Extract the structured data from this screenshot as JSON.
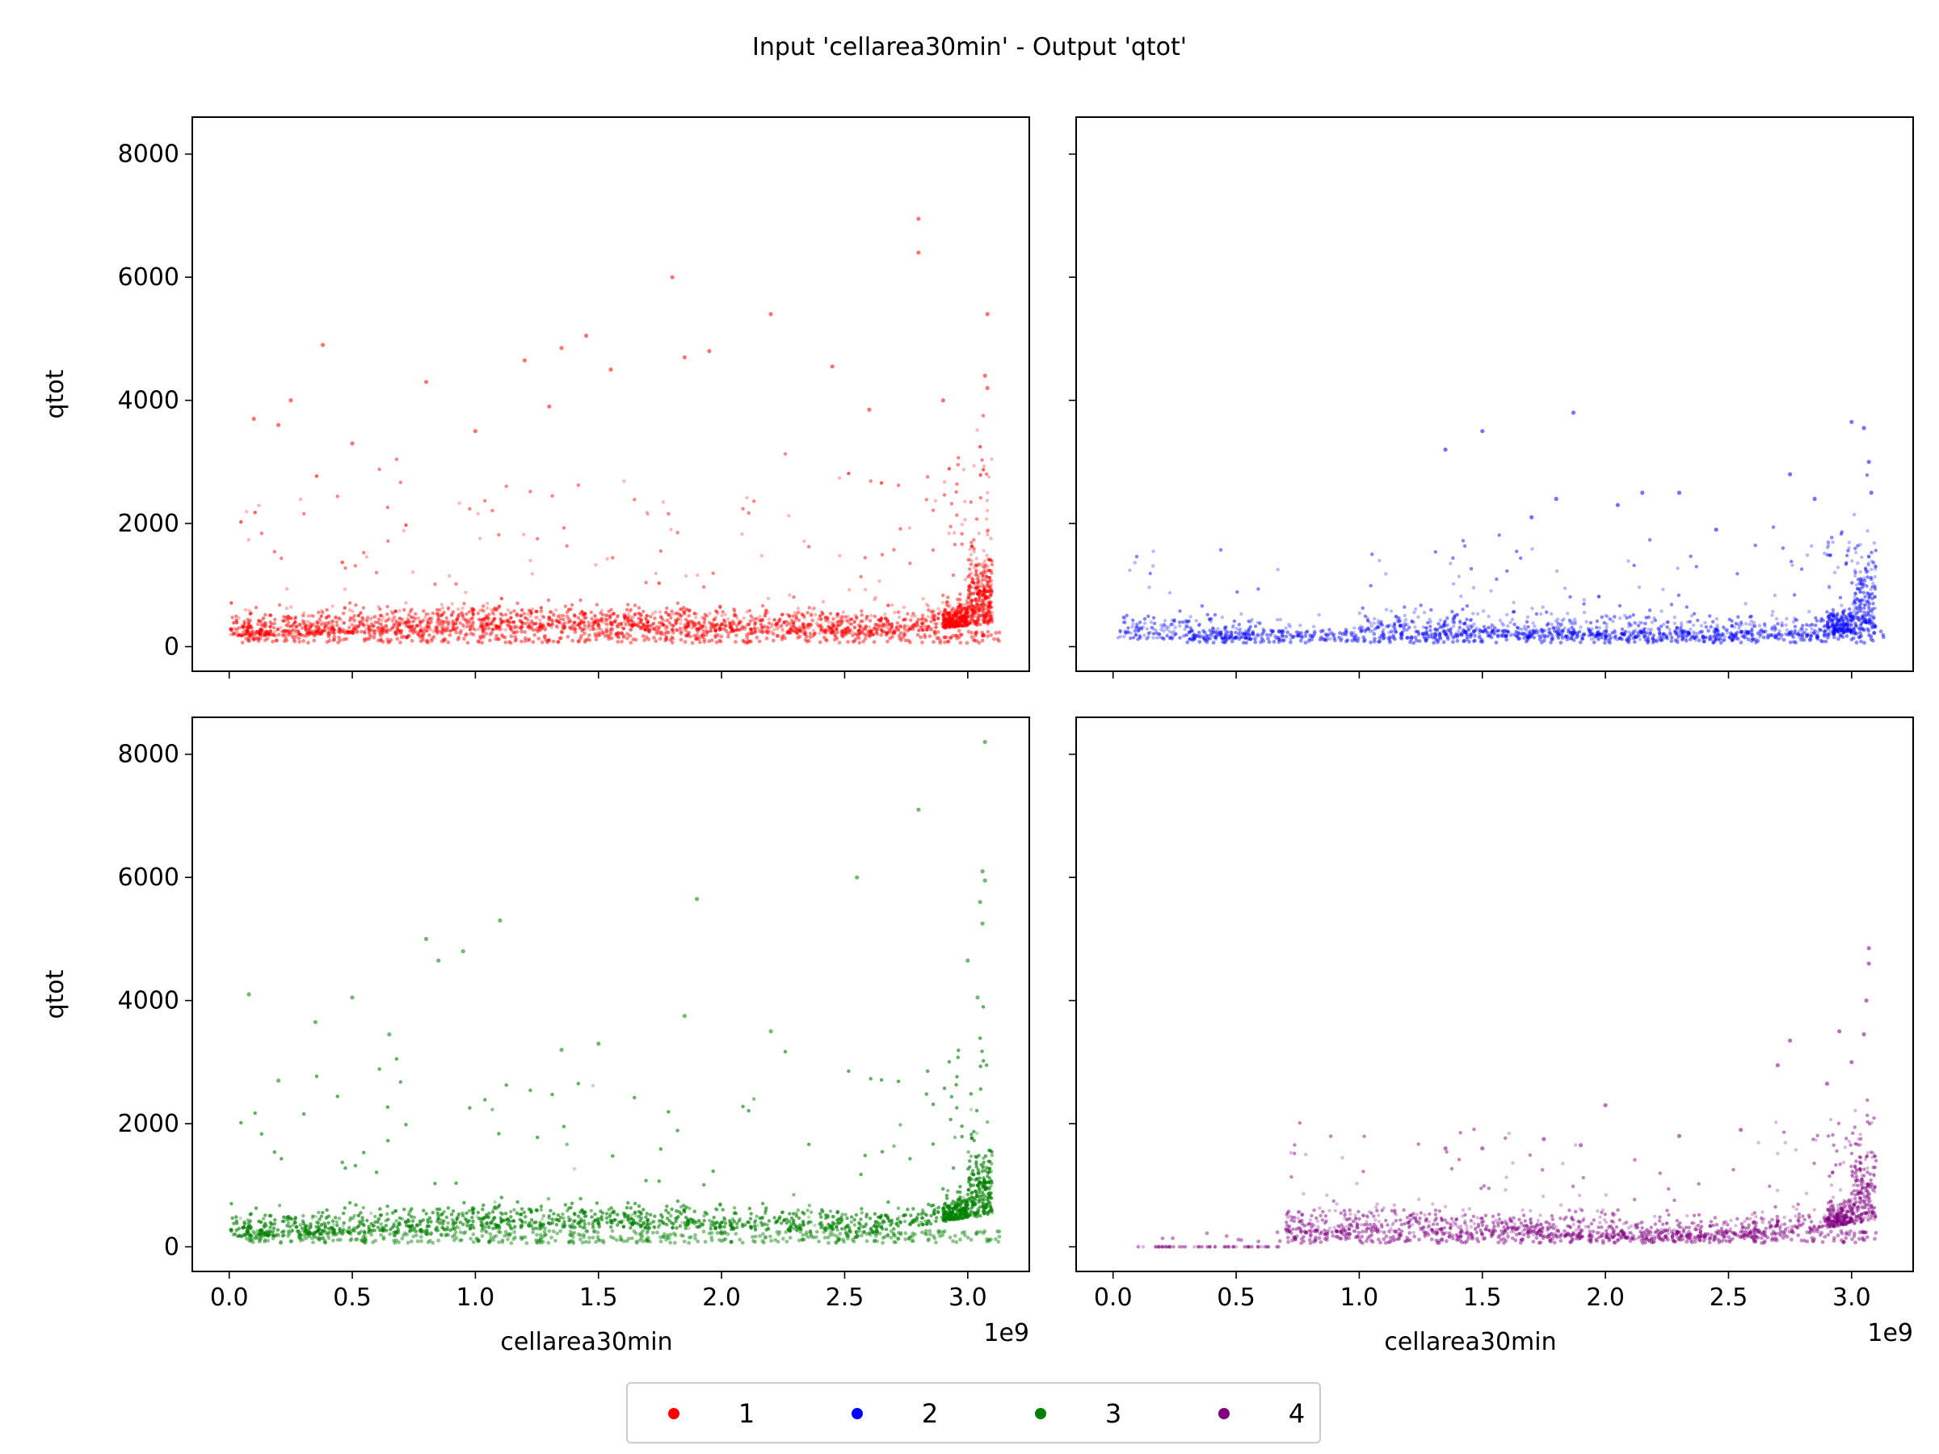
{
  "suptitle": "Input 'cellarea30min' - Output 'qtot'",
  "chart_data": {
    "type": "scatter",
    "xlim": [
      -150000000.0,
      3250000000.0
    ],
    "ylim": [
      -400,
      8600
    ],
    "xticks": [
      0.0,
      0.5,
      1.0,
      1.5,
      2.0,
      2.5,
      3.0
    ],
    "xtick_labels": [
      "0.0",
      "0.5",
      "1.0",
      "1.5",
      "2.0",
      "2.5",
      "3.0"
    ],
    "x_offset_label": "1e9",
    "yticks": [
      0,
      2000,
      4000,
      6000,
      8000
    ],
    "ytick_labels": [
      "0",
      "2000",
      "4000",
      "6000",
      "8000"
    ],
    "xlabel": "cellarea30min",
    "ylabel": "qtot",
    "grid": false,
    "legend_placement": "bottom-center",
    "panels": [
      {
        "series": "1",
        "color": "#ff0000",
        "outliers": [
          [
            0.1,
            3700
          ],
          [
            0.2,
            3600
          ],
          [
            0.25,
            4000
          ],
          [
            0.38,
            4900
          ],
          [
            0.5,
            3300
          ],
          [
            0.8,
            4300
          ],
          [
            1.0,
            3500
          ],
          [
            1.2,
            4650
          ],
          [
            1.3,
            3900
          ],
          [
            1.35,
            4850
          ],
          [
            1.45,
            5050
          ],
          [
            1.55,
            4500
          ],
          [
            1.8,
            6000
          ],
          [
            1.85,
            4700
          ],
          [
            1.95,
            4800
          ],
          [
            2.2,
            5400
          ],
          [
            2.45,
            4550
          ],
          [
            2.6,
            3850
          ],
          [
            2.8,
            6950
          ],
          [
            2.8,
            6400
          ],
          [
            2.9,
            4000
          ],
          [
            3.08,
            5400
          ],
          [
            3.07,
            4400
          ],
          [
            3.08,
            4200
          ]
        ]
      },
      {
        "series": "2",
        "color": "#0000ff",
        "outliers": [
          [
            1.35,
            3200
          ],
          [
            1.5,
            3500
          ],
          [
            1.7,
            2100
          ],
          [
            1.8,
            2400
          ],
          [
            1.87,
            3800
          ],
          [
            2.05,
            2300
          ],
          [
            2.15,
            2500
          ],
          [
            2.3,
            2500
          ],
          [
            2.45,
            1900
          ],
          [
            2.75,
            2800
          ],
          [
            2.85,
            2400
          ],
          [
            3.0,
            3650
          ],
          [
            3.05,
            3550
          ],
          [
            3.07,
            3000
          ],
          [
            3.08,
            2500
          ]
        ]
      },
      {
        "series": "3",
        "color": "#008000",
        "outliers": [
          [
            0.08,
            4100
          ],
          [
            0.2,
            2700
          ],
          [
            0.35,
            3650
          ],
          [
            0.5,
            4050
          ],
          [
            0.65,
            3450
          ],
          [
            0.8,
            5000
          ],
          [
            0.85,
            4650
          ],
          [
            0.95,
            4800
          ],
          [
            1.1,
            5300
          ],
          [
            1.35,
            3200
          ],
          [
            1.5,
            3300
          ],
          [
            1.85,
            3750
          ],
          [
            1.9,
            5650
          ],
          [
            2.2,
            3500
          ],
          [
            2.55,
            6000
          ],
          [
            2.8,
            7100
          ],
          [
            3.07,
            8200
          ],
          [
            3.06,
            6100
          ],
          [
            3.07,
            5950
          ],
          [
            3.05,
            5600
          ],
          [
            3.06,
            5250
          ],
          [
            3.0,
            4650
          ],
          [
            3.04,
            4050
          ]
        ]
      },
      {
        "series": "4",
        "color": "#800080",
        "outliers": [
          [
            1.35,
            1600
          ],
          [
            1.5,
            1600
          ],
          [
            1.75,
            1750
          ],
          [
            1.9,
            1650
          ],
          [
            2.0,
            2300
          ],
          [
            2.3,
            1800
          ],
          [
            2.55,
            1900
          ],
          [
            2.7,
            2950
          ],
          [
            2.75,
            3350
          ],
          [
            2.9,
            2650
          ],
          [
            2.95,
            3500
          ],
          [
            3.0,
            3000
          ],
          [
            3.07,
            4850
          ],
          [
            3.07,
            4600
          ],
          [
            3.06,
            4000
          ],
          [
            3.05,
            3450
          ]
        ]
      }
    ],
    "legend": [
      {
        "label": "1",
        "color": "#ff0000"
      },
      {
        "label": "2",
        "color": "#0000ff"
      },
      {
        "label": "3",
        "color": "#008000"
      },
      {
        "label": "4",
        "color": "#800080"
      }
    ]
  }
}
